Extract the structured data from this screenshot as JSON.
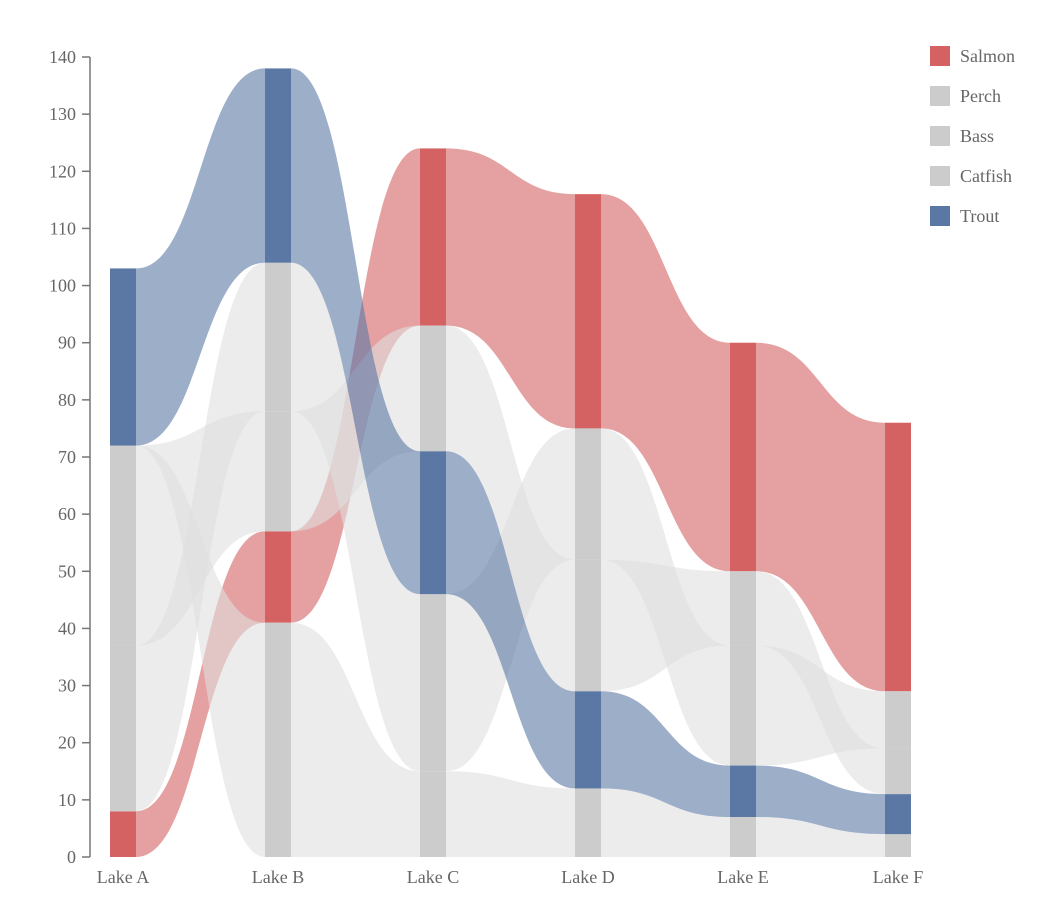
{
  "chart_data": {
    "type": "stacked-area (bump/stream)",
    "title": "",
    "xlabel": "",
    "ylabel": "",
    "ylim": [
      0,
      140
    ],
    "y_ticks": [
      0,
      10,
      20,
      30,
      40,
      50,
      60,
      70,
      80,
      90,
      100,
      110,
      120,
      130,
      140
    ],
    "categories": [
      "Lake A",
      "Lake B",
      "Lake C",
      "Lake D",
      "Lake E",
      "Lake F"
    ],
    "legend_position": "top-right",
    "series": [
      {
        "name": "Salmon",
        "color": "#d46262",
        "values": [
          8,
          16,
          31,
          41,
          40,
          47
        ]
      },
      {
        "name": "Perch",
        "color": "#cccccc",
        "values": [
          29,
          26,
          31,
          23,
          21,
          10
        ]
      },
      {
        "name": "Bass",
        "color": "#cccccc",
        "values": [
          35,
          21,
          22,
          23,
          13,
          8
        ]
      },
      {
        "name": "Catfish",
        "color": "#cccccc",
        "values": [
          0,
          41,
          15,
          12,
          7,
          4
        ]
      },
      {
        "name": "Trout",
        "color": "#5b78a5",
        "values": [
          31,
          34,
          25,
          17,
          9,
          7
        ]
      }
    ],
    "stack_order_bottom_to_top": [
      [
        "Salmon",
        "Perch",
        "Bass",
        "Catfish",
        "Trout"
      ],
      [
        "Catfish",
        "Salmon",
        "Bass",
        "Perch",
        "Trout"
      ],
      [
        "Catfish",
        "Perch",
        "Trout",
        "Bass",
        "Salmon"
      ],
      [
        "Catfish",
        "Trout",
        "Bass",
        "Perch",
        "Salmon"
      ],
      [
        "Catfish",
        "Trout",
        "Perch",
        "Bass",
        "Salmon"
      ],
      [
        "Catfish",
        "Trout",
        "Bass",
        "Perch",
        "Salmon"
      ]
    ]
  }
}
